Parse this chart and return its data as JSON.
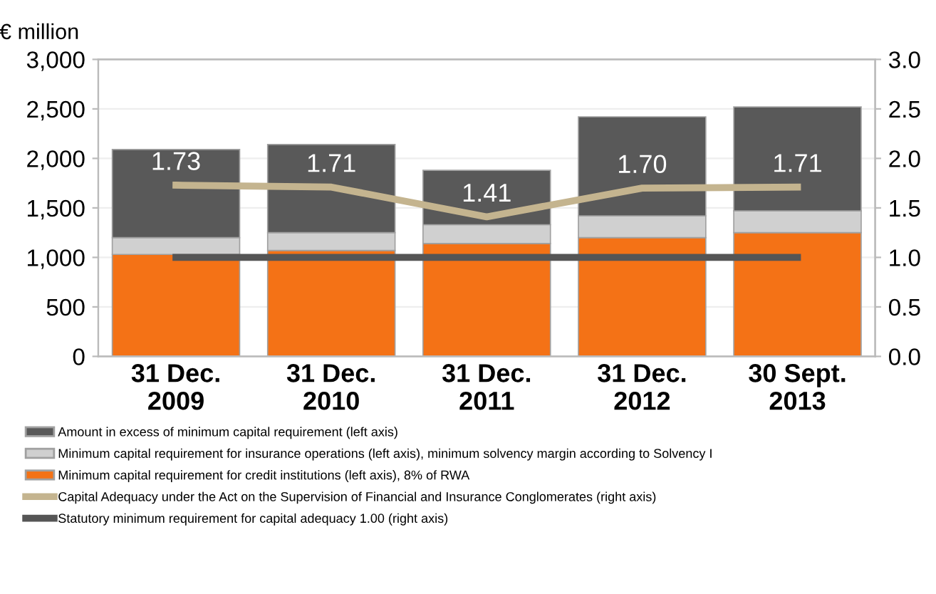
{
  "chart_data": {
    "type": "bar",
    "stacked": true,
    "ylabel": "€ million",
    "categories": [
      "31 Dec.\n2009",
      "31 Dec.\n2010",
      "31 Dec.\n2011",
      "31 Dec.\n2012",
      "30 Sept.\n2013"
    ],
    "series": [
      {
        "name": "Minimum capital requirement for credit institutions (left axis), 8% of RWA",
        "color": "#f47216",
        "values": [
          1030,
          1070,
          1140,
          1200,
          1250
        ]
      },
      {
        "name": "Minimum capital requirement for insurance operations (left axis), minimum solvency margin according to Solvency I",
        "color": "#d0d0d0",
        "values": [
          170,
          180,
          190,
          220,
          220
        ]
      },
      {
        "name": "Amount in excess of minimum capital requirement (left axis)",
        "color": "#595959",
        "values": [
          890,
          890,
          550,
          1000,
          1050
        ]
      },
      {
        "name": "Capital Adequacy under the Act on the Supervision of Financial and Insurance Conglomerates (right axis)",
        "type": "line",
        "axis": "y2",
        "color": "#c4b48f",
        "values": [
          1.73,
          1.71,
          1.41,
          1.7,
          1.71
        ],
        "value_labels": [
          "1.73",
          "1.71",
          "1.41",
          "1.70",
          "1.71"
        ]
      },
      {
        "name": "Statutory minimum requirement for capital adequacy 1.00 (right axis)",
        "type": "line",
        "axis": "y2",
        "color": "#555555",
        "values": [
          1.0,
          1.0,
          1.0,
          1.0,
          1.0
        ]
      }
    ],
    "ylim": [
      0,
      3000
    ],
    "yticks": [
      0,
      500,
      {
        "value": 1000,
        "label": "1,000"
      },
      {
        "value": 1500,
        "label": "1,500"
      },
      {
        "value": 2000,
        "label": "2,000"
      },
      {
        "value": 2500,
        "label": "2,500"
      },
      {
        "value": 3000,
        "label": "3,000"
      }
    ],
    "y2lim": [
      0,
      3
    ],
    "y2ticks": [
      {
        "value": 0,
        "label": "0.0"
      },
      0.5,
      {
        "value": 1,
        "label": "1.0"
      },
      1.5,
      {
        "value": 2,
        "label": "2.0"
      },
      2.5,
      {
        "value": 3,
        "label": "3.0"
      }
    ],
    "grid": "y",
    "legend": "bottom",
    "marker": "none",
    "line_style": "solid"
  }
}
